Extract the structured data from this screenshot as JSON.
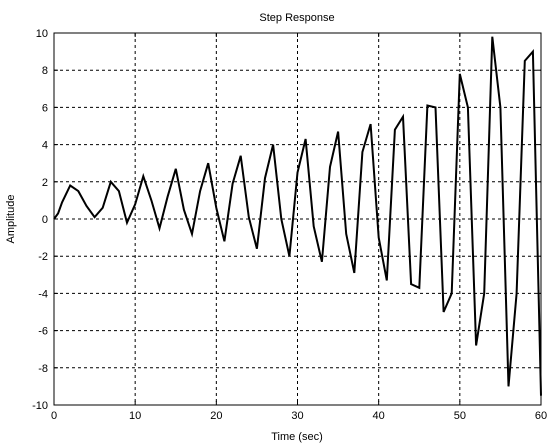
{
  "chart_data": {
    "type": "line",
    "title": "Step Response",
    "xlabel": "Time (sec)",
    "ylabel": "Amplitude",
    "xlim": [
      0,
      60
    ],
    "ylim": [
      -10,
      10
    ],
    "xticks": [
      0,
      10,
      20,
      30,
      40,
      50,
      60
    ],
    "yticks": [
      -10,
      -8,
      -6,
      -4,
      -2,
      0,
      2,
      4,
      6,
      8,
      10
    ],
    "grid": true,
    "grid_style": "dashed",
    "colors": {
      "line": "#000000",
      "grid": "#000000",
      "axes": "#000000"
    },
    "series": [
      {
        "x": [
          0,
          0.5,
          1,
          2,
          3,
          4,
          5,
          6,
          7,
          8,
          9,
          10,
          11,
          12,
          13,
          14,
          15,
          16,
          17,
          18,
          19,
          20,
          21,
          22,
          23,
          24,
          25,
          26,
          27,
          28,
          29,
          30,
          31,
          32,
          33,
          34,
          35,
          36,
          37,
          38,
          39,
          40,
          41,
          42,
          43,
          44,
          45,
          46,
          47,
          48,
          49,
          50,
          51,
          52,
          53,
          54,
          55,
          56,
          57,
          58,
          59,
          60
        ],
        "y": [
          0,
          0.3,
          0.9,
          1.8,
          1.5,
          0.7,
          0.1,
          0.6,
          2.0,
          1.5,
          -0.2,
          0.8,
          2.3,
          1.0,
          -0.5,
          1.2,
          2.7,
          0.5,
          -0.8,
          1.5,
          3.0,
          0.6,
          -1.2,
          1.9,
          3.4,
          0.1,
          -1.6,
          2.2,
          4.0,
          0.0,
          -2.0,
          2.5,
          4.3,
          -0.4,
          -2.3,
          2.8,
          4.7,
          -0.8,
          -2.9,
          3.6,
          5.1,
          -1.0,
          -3.3,
          4.8,
          5.5,
          -3.5,
          -3.7,
          6.1,
          6.0,
          -5.0,
          -4.0,
          7.8,
          6.0,
          -6.8,
          -4.0,
          9.8,
          6.0,
          -9.0,
          -4.0,
          8.5,
          9.0,
          -9.5
        ]
      }
    ]
  }
}
